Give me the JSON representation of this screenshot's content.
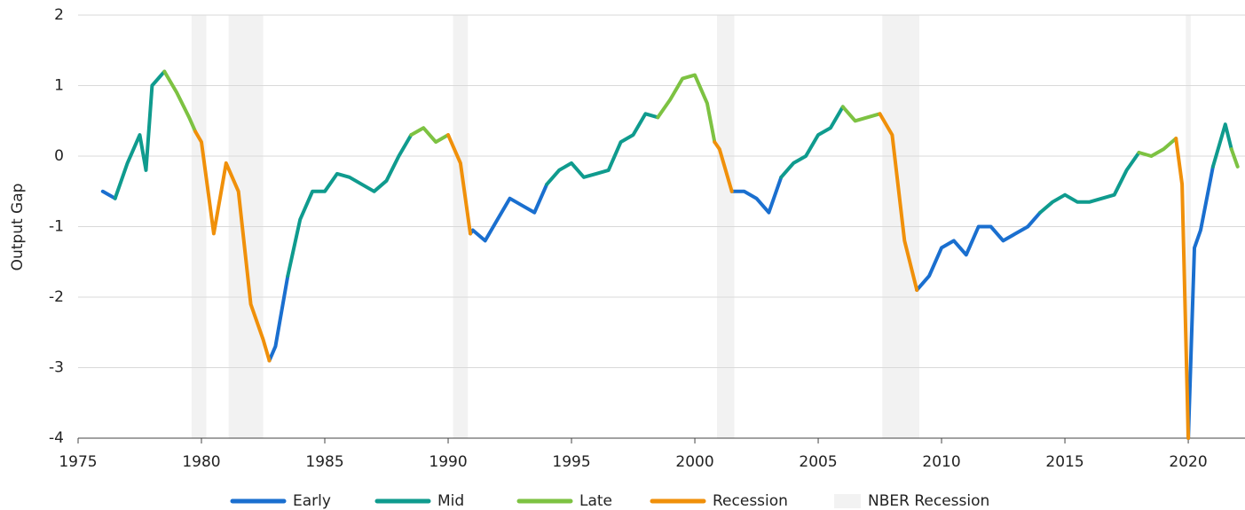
{
  "chart_data": {
    "type": "line",
    "y_label": "Output Gap",
    "x": [
      1976,
      1976.5,
      1977,
      1977.5,
      1977.75,
      1978,
      1978.5,
      1979,
      1979.5,
      1979.75,
      1980,
      1980.5,
      1980.75,
      1981,
      1981.5,
      1982,
      1982.5,
      1982.75,
      1983,
      1983.5,
      1984,
      1984.5,
      1985,
      1985.5,
      1986,
      1986.5,
      1987,
      1987.5,
      1988,
      1988.5,
      1989,
      1989.5,
      1990,
      1990.5,
      1990.9,
      1991,
      1991.5,
      1992,
      1992.5,
      1993,
      1993.5,
      1994,
      1994.5,
      1995,
      1995.5,
      1996,
      1996.5,
      1997,
      1997.5,
      1998,
      1998.5,
      1999,
      1999.5,
      2000,
      2000.5,
      2000.8,
      2001,
      2001.5,
      2002,
      2002.5,
      2003,
      2003.5,
      2004,
      2004.5,
      2005,
      2005.5,
      2006,
      2006.5,
      2007,
      2007.5,
      2008,
      2008.5,
      2009,
      2009.5,
      2010,
      2010.5,
      2011,
      2011.5,
      2012,
      2012.5,
      2013,
      2013.5,
      2014,
      2014.5,
      2015,
      2015.5,
      2016,
      2016.5,
      2017,
      2017.5,
      2018,
      2018.5,
      2019,
      2019.5,
      2019.75,
      2020,
      2020.25,
      2020.5,
      2021,
      2021.5,
      2021.75,
      2022
    ],
    "series": [
      {
        "name": "Early",
        "color": "#1a6fcf",
        "values": [
          -0.5,
          -0.6,
          null,
          null,
          null,
          null,
          null,
          null,
          null,
          null,
          null,
          null,
          null,
          null,
          null,
          null,
          null,
          -2.9,
          -2.7,
          -1.7,
          null,
          null,
          null,
          null,
          null,
          null,
          null,
          null,
          null,
          null,
          null,
          null,
          null,
          null,
          -1.1,
          -1.05,
          -1.2,
          -0.9,
          -0.6,
          -0.7,
          -0.8,
          -0.4,
          null,
          null,
          null,
          null,
          null,
          null,
          null,
          null,
          null,
          null,
          null,
          null,
          null,
          null,
          null,
          -0.5,
          -0.5,
          -0.6,
          -0.8,
          -0.3,
          null,
          null,
          null,
          null,
          null,
          null,
          null,
          null,
          null,
          null,
          -1.9,
          -1.7,
          -1.3,
          -1.2,
          -1.4,
          -1.0,
          -1.0,
          -1.2,
          -1.1,
          -1.0,
          -0.8,
          null,
          null,
          null,
          null,
          null,
          null,
          null,
          null,
          null,
          null,
          null,
          null,
          -4.0,
          -1.3,
          -1.05,
          -0.15,
          null,
          null,
          null
        ]
      },
      {
        "name": "Mid",
        "color": "#0f9b8e",
        "values": [
          null,
          -0.6,
          -0.1,
          0.3,
          -0.2,
          1.0,
          1.2,
          null,
          null,
          null,
          null,
          null,
          null,
          null,
          null,
          null,
          null,
          null,
          null,
          -1.7,
          -0.9,
          -0.5,
          -0.5,
          -0.25,
          -0.3,
          -0.4,
          -0.5,
          -0.35,
          0.0,
          0.3,
          null,
          null,
          null,
          null,
          null,
          null,
          null,
          null,
          null,
          null,
          null,
          -0.4,
          -0.2,
          -0.1,
          -0.3,
          -0.25,
          -0.2,
          0.2,
          0.3,
          0.6,
          0.55,
          null,
          null,
          null,
          null,
          null,
          null,
          null,
          null,
          null,
          null,
          -0.3,
          -0.1,
          0.0,
          0.3,
          0.4,
          0.7,
          null,
          null,
          null,
          null,
          null,
          null,
          null,
          null,
          null,
          null,
          null,
          null,
          null,
          null,
          null,
          -0.8,
          -0.65,
          -0.55,
          -0.65,
          -0.65,
          -0.6,
          -0.55,
          -0.2,
          0.05,
          null,
          null,
          null,
          null,
          null,
          null,
          null,
          -0.15,
          0.45,
          0.1,
          null
        ]
      },
      {
        "name": "Late",
        "color": "#7dc242",
        "values": [
          null,
          null,
          null,
          null,
          null,
          null,
          1.2,
          0.9,
          0.55,
          0.35,
          null,
          null,
          null,
          null,
          null,
          null,
          null,
          null,
          null,
          null,
          null,
          null,
          null,
          null,
          null,
          null,
          null,
          null,
          null,
          0.3,
          0.4,
          0.2,
          0.3,
          null,
          null,
          null,
          null,
          null,
          null,
          null,
          null,
          null,
          null,
          null,
          null,
          null,
          null,
          null,
          null,
          null,
          0.55,
          0.8,
          1.1,
          1.15,
          0.75,
          0.2,
          null,
          null,
          null,
          null,
          null,
          null,
          null,
          null,
          null,
          null,
          0.7,
          0.5,
          0.55,
          0.6,
          null,
          null,
          null,
          null,
          null,
          null,
          null,
          null,
          null,
          null,
          null,
          null,
          null,
          null,
          null,
          null,
          null,
          null,
          null,
          null,
          0.05,
          0.0,
          0.1,
          0.25,
          null,
          null,
          null,
          null,
          null,
          null,
          0.1,
          -0.15
        ]
      },
      {
        "name": "Recession",
        "color": "#f0900a",
        "values": [
          null,
          null,
          null,
          null,
          null,
          null,
          null,
          null,
          null,
          0.35,
          0.2,
          -1.1,
          -0.6,
          -0.1,
          -0.5,
          -2.1,
          -2.6,
          -2.9,
          null,
          null,
          null,
          null,
          null,
          null,
          null,
          null,
          null,
          null,
          null,
          null,
          null,
          null,
          0.3,
          -0.1,
          -1.1,
          null,
          null,
          null,
          null,
          null,
          null,
          null,
          null,
          null,
          null,
          null,
          null,
          null,
          null,
          null,
          null,
          null,
          null,
          null,
          null,
          0.2,
          0.1,
          -0.5,
          null,
          null,
          null,
          null,
          null,
          null,
          null,
          null,
          null,
          null,
          null,
          0.6,
          0.3,
          -1.2,
          -1.9,
          null,
          null,
          null,
          null,
          null,
          null,
          null,
          null,
          null,
          null,
          null,
          null,
          null,
          null,
          null,
          null,
          null,
          null,
          null,
          null,
          0.25,
          -0.4,
          -4.0,
          null,
          null,
          null,
          null,
          null,
          null
        ]
      }
    ],
    "recessions": {
      "name": "NBER Recession",
      "color": "#f2f2f2",
      "ranges": [
        [
          1979.6,
          1980.2
        ],
        [
          1981.1,
          1982.5
        ],
        [
          1990.2,
          1990.8
        ],
        [
          2000.9,
          2001.6
        ],
        [
          2007.6,
          2009.1
        ],
        [
          2019.9,
          2020.1
        ]
      ]
    },
    "xlim": [
      1975,
      2022.3
    ],
    "xticks": [
      1975,
      1980,
      1985,
      1990,
      1995,
      2000,
      2005,
      2010,
      2015,
      2020
    ],
    "ylim": [
      -4,
      2
    ],
    "yticks": [
      -4,
      -3,
      -2,
      -1,
      0,
      1,
      2
    ],
    "grid": true
  }
}
